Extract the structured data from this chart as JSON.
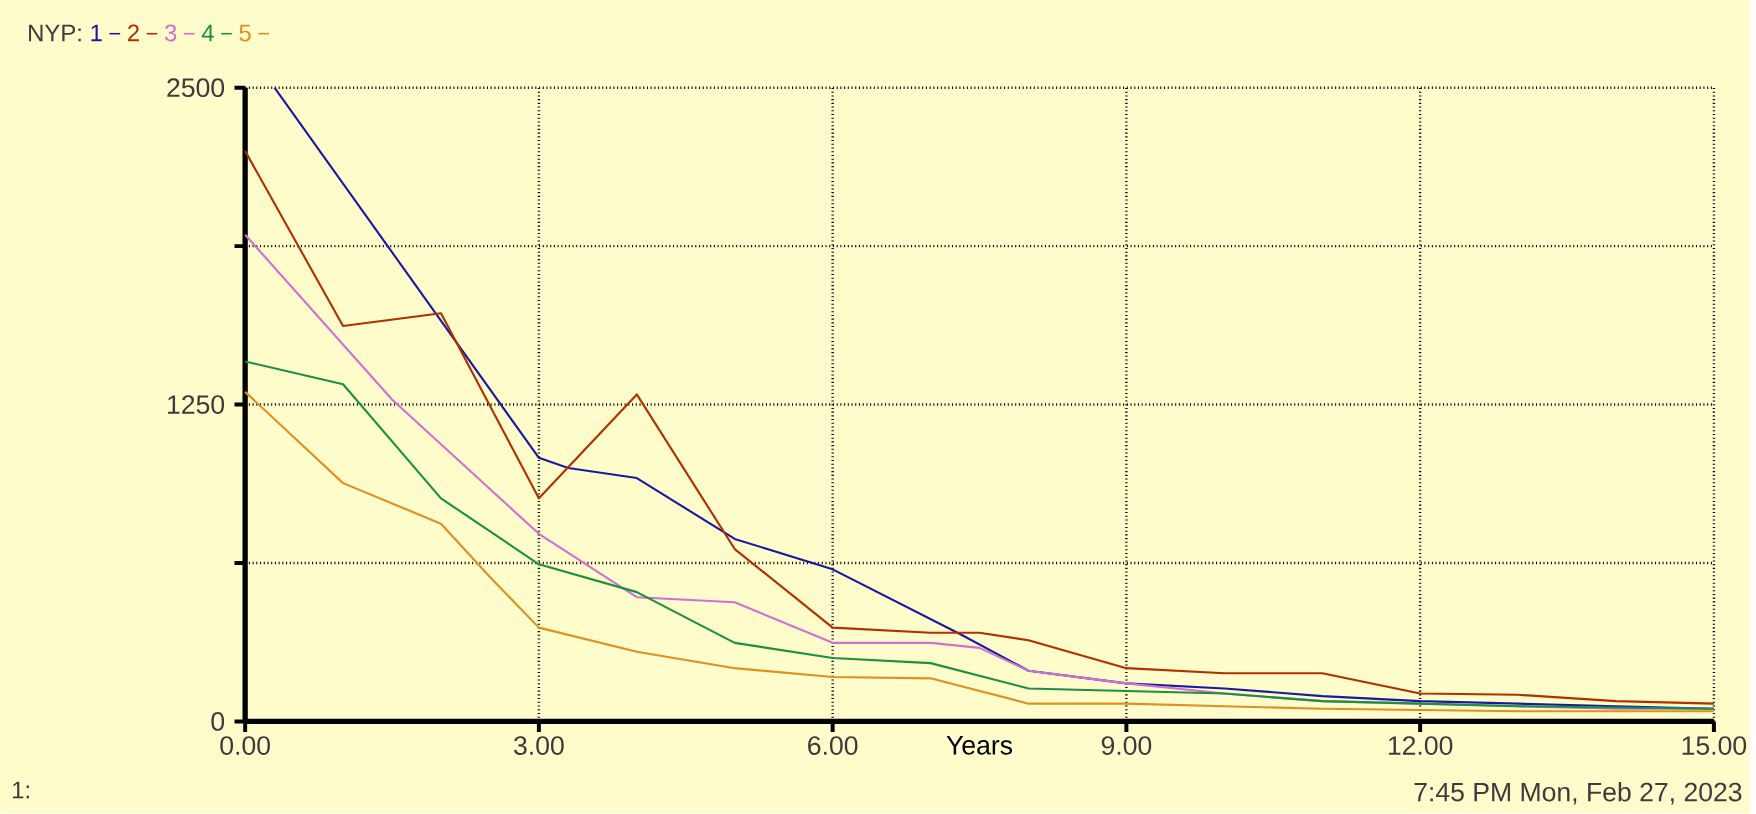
{
  "chart_data": {
    "type": "line",
    "legend_title": "NYP:",
    "legend": "top left",
    "xlabel": "Years",
    "annotations": [
      "7:45 PM   Mon, Feb 27, 2023",
      "1:"
    ],
    "xlim": [
      0,
      15
    ],
    "xticks": [
      {
        "value": 0,
        "label": "0.00"
      },
      {
        "value": 3,
        "label": "3.00"
      },
      {
        "value": 6,
        "label": "6.00"
      },
      {
        "value": 9,
        "label": "9.00"
      },
      {
        "value": 12,
        "label": "12.00"
      },
      {
        "value": 15,
        "label": "15.00"
      }
    ],
    "ylim": [
      0,
      2500
    ],
    "yticks": [
      0,
      {
        "value": 625,
        "label": null
      },
      1250,
      {
        "value": 1875,
        "label": null
      },
      2500
    ],
    "grid": true,
    "marker": "none",
    "line_style": "solid",
    "series": [
      {
        "name": "1",
        "color": "#1a1aa0",
        "x": [
          0.3,
          3,
          3.3,
          4,
          5,
          6,
          7.3,
          8,
          9,
          10,
          11,
          12,
          13,
          14,
          15
        ],
        "values": [
          2500,
          1040,
          1000,
          960,
          720,
          600,
          345,
          200,
          150,
          130,
          100,
          80,
          70,
          60,
          50
        ]
      },
      {
        "name": "2",
        "color": "#b03000",
        "x": [
          0,
          1,
          2,
          3,
          4,
          5,
          6,
          7,
          7.5,
          8,
          9,
          10,
          11,
          12,
          13,
          14,
          15
        ],
        "values": [
          2250,
          1560,
          1610,
          880,
          1290,
          680,
          370,
          350,
          350,
          320,
          210,
          190,
          190,
          110,
          105,
          80,
          70
        ]
      },
      {
        "name": "3",
        "color": "#d070d0",
        "x": [
          0,
          1.5,
          3,
          4,
          5,
          6,
          7,
          7.5,
          8,
          9,
          10,
          11,
          12,
          13,
          14,
          15
        ],
        "values": [
          1920,
          1270,
          740,
          490,
          470,
          310,
          310,
          290,
          200,
          150,
          110,
          80,
          70,
          60,
          50,
          50
        ]
      },
      {
        "name": "4",
        "color": "#1a9040",
        "x": [
          0,
          1,
          2,
          3,
          4,
          5,
          6,
          7,
          8,
          9,
          10,
          11,
          12,
          13,
          14,
          15
        ],
        "values": [
          1420,
          1330,
          880,
          620,
          510,
          310,
          250,
          230,
          130,
          120,
          110,
          80,
          70,
          60,
          55,
          50
        ]
      },
      {
        "name": "5",
        "color": "#e09020",
        "x": [
          0,
          1,
          2,
          2.5,
          3,
          4,
          5,
          6,
          7,
          8,
          9,
          10,
          11,
          12,
          13,
          14,
          15
        ],
        "values": [
          1300,
          940,
          780,
          570,
          370,
          275,
          210,
          175,
          170,
          70,
          70,
          60,
          50,
          45,
          40,
          40,
          40
        ]
      }
    ]
  }
}
